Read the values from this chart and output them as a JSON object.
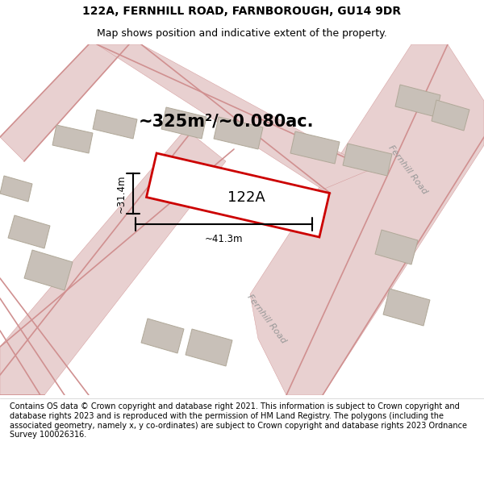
{
  "title_line1": "122A, FERNHILL ROAD, FARNBOROUGH, GU14 9DR",
  "title_line2": "Map shows position and indicative extent of the property.",
  "area_label": "~325m²/~0.080ac.",
  "plot_label": "122A",
  "dim_horizontal": "~41.3m",
  "dim_vertical": "~31.4m",
  "road_label_right": "Fernhill Road",
  "road_label_bottom": "Fernhill Road",
  "footer_text": "Contains OS data © Crown copyright and database right 2021. This information is subject to Crown copyright and database rights 2023 and is reproduced with the permission of HM Land Registry. The polygons (including the associated geometry, namely x, y co-ordinates) are subject to Crown copyright and database rights 2023 Ordnance Survey 100026316.",
  "map_bg": "#eeeae4",
  "road_line_color": "#d09090",
  "road_fill_color": "#e8d0d0",
  "building_face_color": "#c8c0b8",
  "building_edge_color": "#b0a898",
  "plot_edge_color": "#cc0000",
  "plot_fill_color": "#ffffff",
  "dim_line_color": "#000000",
  "title_bg": "#ffffff",
  "footer_bg": "#ffffff",
  "title_fontsize": 10,
  "subtitle_fontsize": 9,
  "area_fontsize": 15,
  "plot_label_fontsize": 13,
  "dim_fontsize": 8.5,
  "road_label_fontsize": 8,
  "footer_fontsize": 7
}
